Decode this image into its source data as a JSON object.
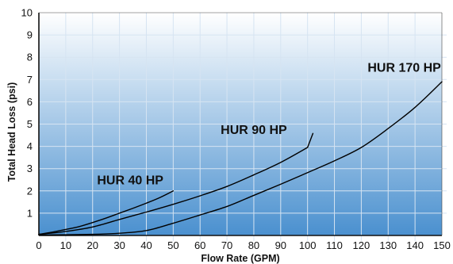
{
  "chart_data": {
    "type": "line",
    "title": "",
    "xlabel": "Flow Rate (GPM)",
    "ylabel": "Total Head Loss (psi)",
    "xlim": [
      0,
      150
    ],
    "ylim": [
      0,
      10
    ],
    "xticks": [
      0,
      10,
      20,
      30,
      40,
      50,
      60,
      70,
      80,
      90,
      100,
      110,
      120,
      130,
      140,
      150
    ],
    "yticks": [
      1,
      2,
      3,
      4,
      5,
      6,
      7,
      8,
      9,
      10
    ],
    "grid": true,
    "legend": "none",
    "background": {
      "top": "#ffffff",
      "bottom": "#4a90cf"
    },
    "grid_color": "#d6e4f2",
    "line_color": "#000000",
    "series": [
      {
        "name": "HUR 40 HP",
        "x": [
          0,
          5,
          10,
          15,
          20,
          25,
          30,
          35,
          40,
          45,
          50
        ],
        "y": [
          0.05,
          0.15,
          0.27,
          0.4,
          0.58,
          0.78,
          1.0,
          1.22,
          1.45,
          1.7,
          2.0
        ]
      },
      {
        "name": "HUR 90 HP",
        "x": [
          0,
          10,
          20,
          30,
          40,
          50,
          60,
          70,
          80,
          90,
          100
        ],
        "y": [
          0.05,
          0.18,
          0.38,
          0.72,
          1.05,
          1.4,
          1.78,
          2.2,
          2.72,
          3.28,
          3.95
        ],
        "end_point": {
          "x": 102,
          "y": 4.58
        }
      },
      {
        "name": "HUR 170 HP",
        "x": [
          0,
          20,
          30,
          40,
          50,
          60,
          70,
          80,
          90,
          100,
          110,
          120,
          130,
          140,
          150
        ],
        "y": [
          0.02,
          0.05,
          0.1,
          0.22,
          0.55,
          0.92,
          1.3,
          1.8,
          2.3,
          2.82,
          3.35,
          3.95,
          4.8,
          5.75,
          6.9
        ]
      }
    ]
  }
}
